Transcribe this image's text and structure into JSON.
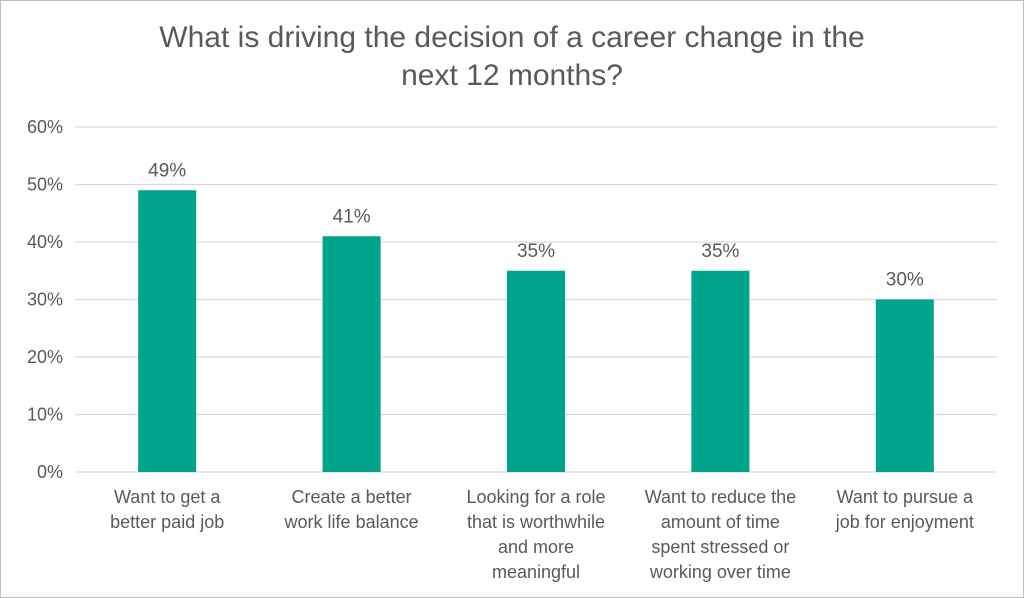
{
  "chart_data": {
    "type": "bar",
    "title_lines": [
      "What is driving the decision of a career change in the",
      "next 12 months?"
    ],
    "categories": [
      [
        "Want to get a",
        "better paid job"
      ],
      [
        "Create a better",
        "work life balance"
      ],
      [
        "Looking for a role",
        "that is worthwhile",
        "and more",
        "meaningful"
      ],
      [
        "Want to reduce the",
        "amount of time",
        "spent stressed or",
        "working over time"
      ],
      [
        "Want to pursue a",
        "job for enjoyment"
      ]
    ],
    "values": [
      49,
      41,
      35,
      35,
      30
    ],
    "data_labels": [
      "49%",
      "41%",
      "35%",
      "35%",
      "30%"
    ],
    "y_ticks": [
      "0%",
      "10%",
      "20%",
      "30%",
      "40%",
      "50%",
      "60%"
    ],
    "ylim": [
      0,
      60
    ],
    "bar_color": "#00A48B",
    "grid": true,
    "legend": "none"
  }
}
